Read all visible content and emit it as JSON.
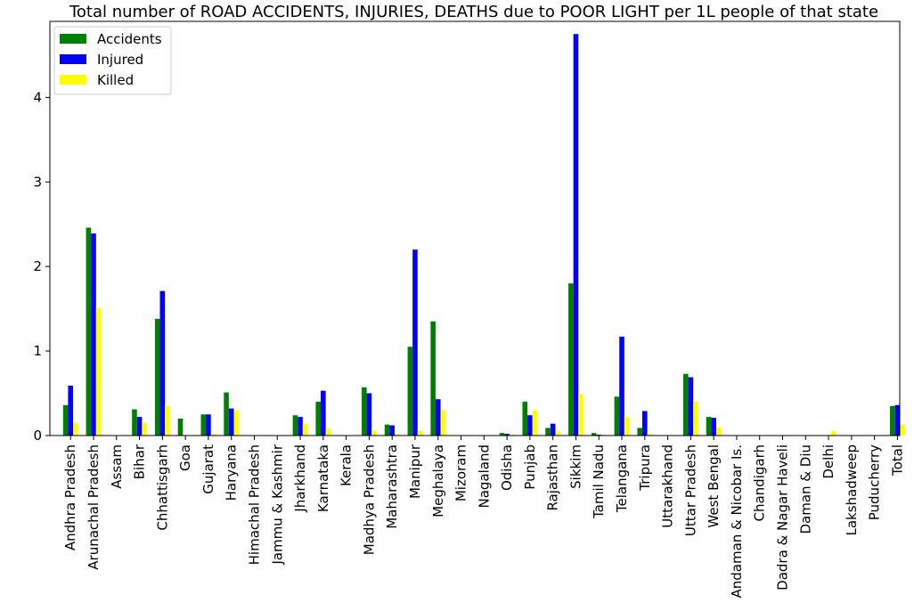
{
  "chart_data": {
    "type": "bar",
    "title": "Total number of ROAD ACCIDENTS, INJURIES, DEATHS due to POOR LIGHT per 1L people of that state",
    "xlabel": "",
    "ylabel": "",
    "ylim": [
      0,
      4.9
    ],
    "yticks": [
      0,
      1,
      2,
      3,
      4
    ],
    "grid": false,
    "legend_position": "top-left",
    "categories": [
      "Andhra Pradesh",
      "Arunachal Pradesh",
      "Assam",
      "Bihar",
      "Chhattisgarh",
      "Goa",
      "Gujarat",
      "Haryana",
      "Himachal Pradesh",
      "Jammu & Kashmir",
      "Jharkhand",
      "Karnataka",
      "Kerala",
      "Madhya Pradesh",
      "Maharashtra",
      "Manipur",
      "Meghalaya",
      "Mizoram",
      "Nagaland",
      "Odisha",
      "Punjab",
      "Rajasthan",
      "Sikkim",
      "Tamil Nadu",
      "Telangana",
      "Tripura",
      "Uttarakhand",
      "Uttar Pradesh",
      "West Bengal",
      "Andaman & Nicobar Is.",
      "Chandigarh",
      "Dadra & Nagar Haveli",
      "Daman & Diu",
      "Delhi",
      "Lakshadweep",
      "Puducherry",
      "Total"
    ],
    "series": [
      {
        "name": "Accidents",
        "color": "#008000",
        "values": [
          0.36,
          2.46,
          0,
          0.31,
          1.38,
          0.2,
          0.25,
          0.51,
          0,
          0,
          0.24,
          0.4,
          0,
          0.57,
          0.13,
          1.05,
          1.35,
          0,
          0,
          0.03,
          0.4,
          0.09,
          1.8,
          0.03,
          0.46,
          0.09,
          0,
          0.73,
          0.22,
          0,
          0,
          0,
          0,
          0,
          0,
          0,
          0.35
        ]
      },
      {
        "name": "Injured",
        "color": "#0000ff",
        "values": [
          0.59,
          2.39,
          0,
          0.22,
          1.71,
          0,
          0.25,
          0.32,
          0,
          0,
          0.22,
          0.53,
          0,
          0.5,
          0.12,
          2.2,
          0.43,
          0,
          0,
          0.02,
          0.24,
          0.14,
          4.75,
          0.01,
          1.17,
          0.29,
          0,
          0.69,
          0.21,
          0,
          0,
          0,
          0,
          0,
          0,
          0,
          0.36
        ]
      },
      {
        "name": "Killed",
        "color": "#ffff00",
        "values": [
          0.15,
          1.51,
          0,
          0.15,
          0.35,
          0,
          0.02,
          0.3,
          0,
          0,
          0.14,
          0.08,
          0,
          0.06,
          0.02,
          0.06,
          0.3,
          0,
          0,
          0.01,
          0.3,
          0.05,
          0.49,
          0.01,
          0.22,
          0.02,
          0,
          0.4,
          0.1,
          0,
          0,
          0,
          0,
          0.05,
          0,
          0,
          0.13
        ]
      }
    ]
  }
}
